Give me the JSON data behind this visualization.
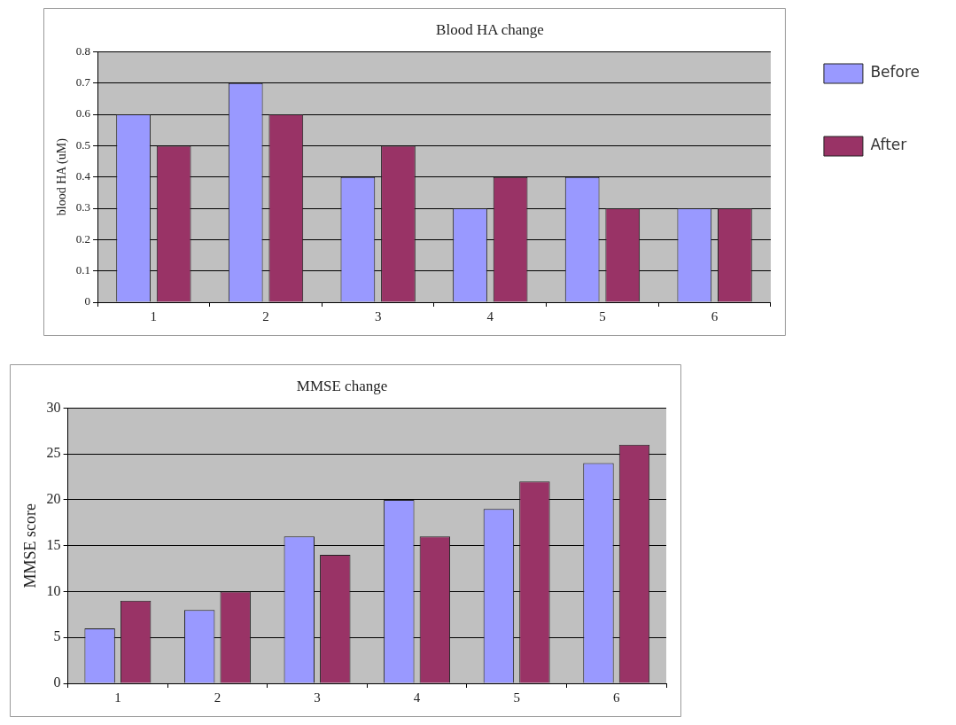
{
  "chart_data": [
    {
      "type": "bar",
      "title": "Blood HA change",
      "ylabel": "blood HA (uM)",
      "categories": [
        "1",
        "2",
        "3",
        "4",
        "5",
        "6"
      ],
      "series": [
        {
          "name": "Before",
          "color": "#9999ff",
          "values": [
            0.6,
            0.7,
            0.4,
            0.3,
            0.4,
            0.3
          ]
        },
        {
          "name": "After",
          "color": "#993366",
          "values": [
            0.5,
            0.6,
            0.5,
            0.4,
            0.3,
            0.3
          ]
        }
      ],
      "ylim": [
        0,
        0.8
      ],
      "yticks": [
        0,
        0.1,
        0.2,
        0.3,
        0.4,
        0.5,
        0.6,
        0.7,
        0.8
      ],
      "grid": "y",
      "legend": "right"
    },
    {
      "type": "bar",
      "title": "MMSE change",
      "ylabel": "MMSE score",
      "categories": [
        "1",
        "2",
        "3",
        "4",
        "5",
        "6"
      ],
      "series": [
        {
          "color": "#9999ff",
          "values": [
            6,
            8,
            16,
            20,
            19,
            24
          ]
        },
        {
          "color": "#993366",
          "values": [
            9,
            10,
            14,
            16,
            22,
            26
          ]
        }
      ],
      "ylim": [
        0,
        30
      ],
      "yticks": [
        0,
        5,
        10,
        15,
        20,
        25,
        30
      ],
      "grid": "y",
      "legend": false
    }
  ]
}
